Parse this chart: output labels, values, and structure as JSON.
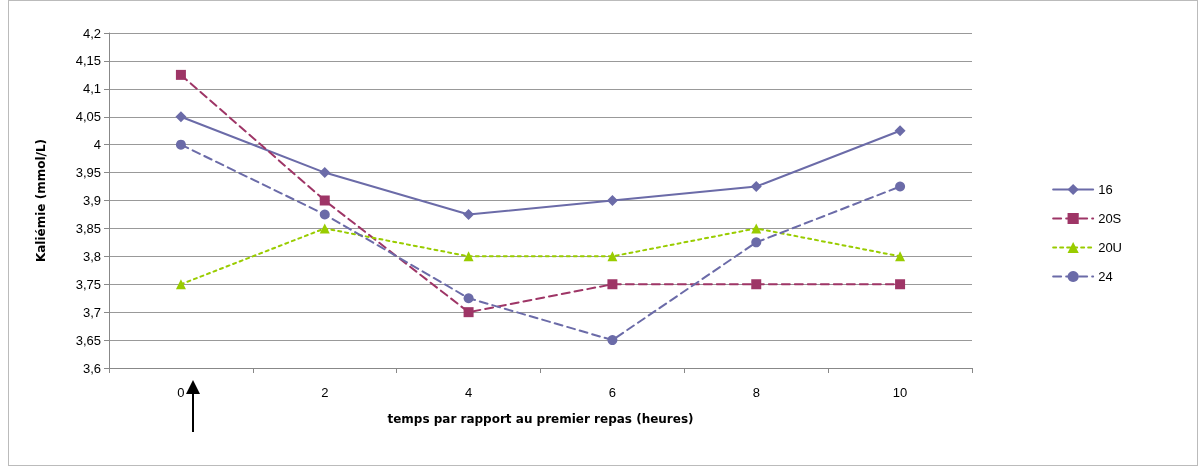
{
  "chart_data": {
    "type": "line",
    "xlabel": "temps par rapport au premier repas (heures)",
    "ylabel": "Kaliémie (mmol/L)",
    "categories": [
      "0",
      "2",
      "4",
      "6",
      "8",
      "10"
    ],
    "series": [
      {
        "name": "16",
        "color": "#6b6ba8",
        "values": [
          4.05,
          3.95,
          3.875,
          3.9,
          3.925,
          4.025
        ],
        "marker": "diamond",
        "line_style": "solid"
      },
      {
        "name": "20S",
        "color": "#9e3566",
        "values": [
          4.125,
          3.9,
          3.7,
          3.75,
          3.75,
          3.75
        ],
        "marker": "square",
        "line_style": "dashed"
      },
      {
        "name": "20U",
        "color": "#99cc00",
        "values": [
          3.75,
          3.85,
          3.8,
          3.8,
          3.85,
          3.8
        ],
        "marker": "triangle",
        "line_style": "dotted"
      },
      {
        "name": "24",
        "color": "#6b6ba8",
        "values": [
          4.0,
          3.875,
          3.725,
          3.65,
          3.825,
          3.925
        ],
        "marker": "circle",
        "line_style": "dashed"
      }
    ],
    "ylim": [
      3.6,
      4.2
    ],
    "yticks": [
      {
        "value": 3.6,
        "label": "3,6"
      },
      {
        "value": 3.65,
        "label": "3,65"
      },
      {
        "value": 3.7,
        "label": "3,7"
      },
      {
        "value": 3.75,
        "label": "3,75"
      },
      {
        "value": 3.8,
        "label": "3,8"
      },
      {
        "value": 3.85,
        "label": "3,85"
      },
      {
        "value": 3.9,
        "label": "3,9"
      },
      {
        "value": 3.95,
        "label": "3,95"
      },
      {
        "value": 4,
        "label": "4"
      },
      {
        "value": 4.05,
        "label": "4,05"
      },
      {
        "value": 4.1,
        "label": "4,1"
      },
      {
        "value": 4.15,
        "label": "4,15"
      },
      {
        "value": 4.2,
        "label": "4,2"
      }
    ],
    "grid": "y",
    "legend": "right"
  }
}
